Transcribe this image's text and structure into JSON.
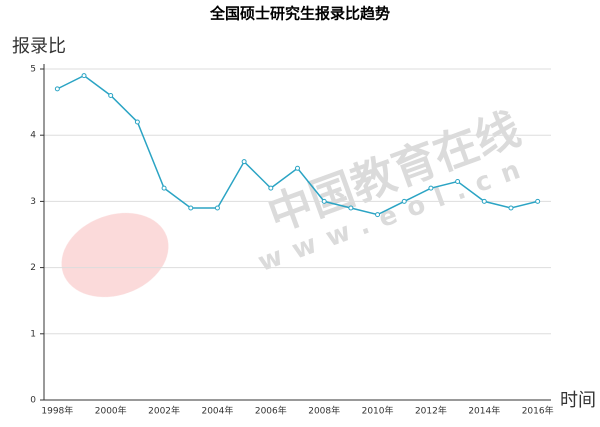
{
  "chart_data": {
    "type": "line",
    "title": "全国硕士研究生报录比趋势",
    "y_label": "报录比",
    "x_label": "时间",
    "watermark": [
      "中国教育在线",
      "www.eol.cn"
    ],
    "categories": [
      "1998年",
      null,
      "2000年",
      null,
      "2002年",
      null,
      "2004年",
      null,
      "2006年",
      null,
      "2008年",
      null,
      "2010年",
      null,
      "2012年",
      null,
      "2014年",
      null,
      "2016年"
    ],
    "values": [
      4.7,
      4.9,
      4.6,
      4.2,
      3.2,
      2.9,
      2.9,
      3.6,
      3.2,
      3.5,
      3.0,
      2.9,
      2.8,
      3.0,
      3.2,
      3.3,
      3.0,
      2.9,
      3.0
    ],
    "color": "#2ba4c4",
    "ylim": [
      0,
      5
    ],
    "yticks": [
      0,
      1,
      2,
      3,
      4,
      5
    ],
    "grid": true
  }
}
